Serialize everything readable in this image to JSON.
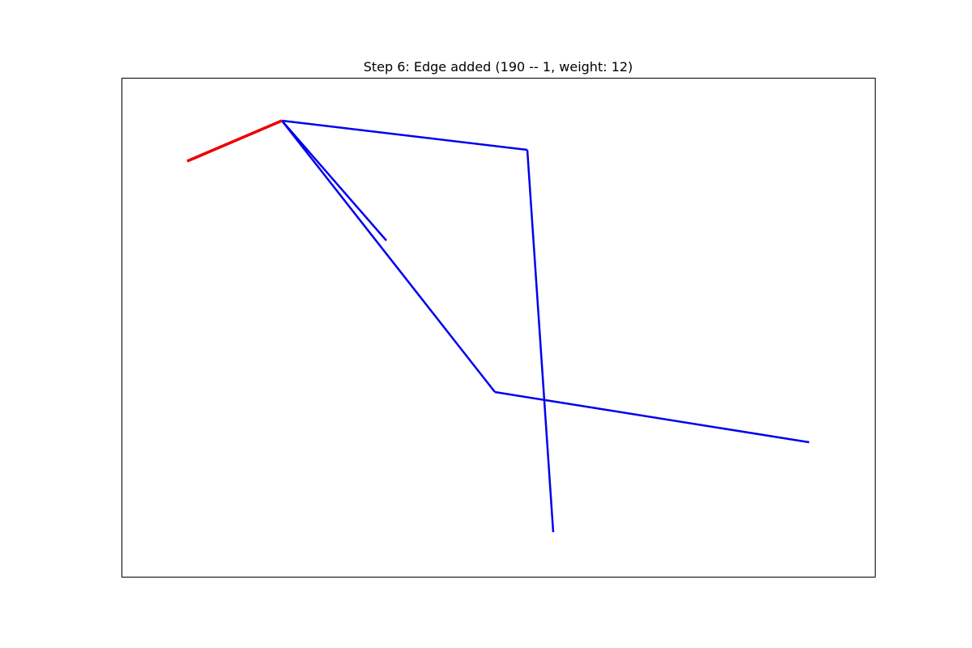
{
  "chart_data": {
    "type": "graph",
    "title": "Step 6: Edge added (190 -- 1, weight: 12)",
    "axes_visible": false,
    "grid": false,
    "colors": {
      "tree_edge": "#0000ee",
      "new_edge": "#ee0000",
      "frame": "#000000"
    },
    "edges": [
      {
        "from": [
          348,
          149
        ],
        "to": [
          651,
          185
        ],
        "new": false
      },
      {
        "from": [
          651,
          185
        ],
        "to": [
          683,
          657
        ],
        "new": false
      },
      {
        "from": [
          348,
          149
        ],
        "to": [
          477,
          297
        ],
        "new": false
      },
      {
        "from": [
          348,
          149
        ],
        "to": [
          611,
          484
        ],
        "new": false
      },
      {
        "from": [
          611,
          484
        ],
        "to": [
          999,
          546
        ],
        "new": false
      },
      {
        "from": [
          231,
          199
        ],
        "to": [
          348,
          149
        ],
        "new": true
      }
    ]
  }
}
